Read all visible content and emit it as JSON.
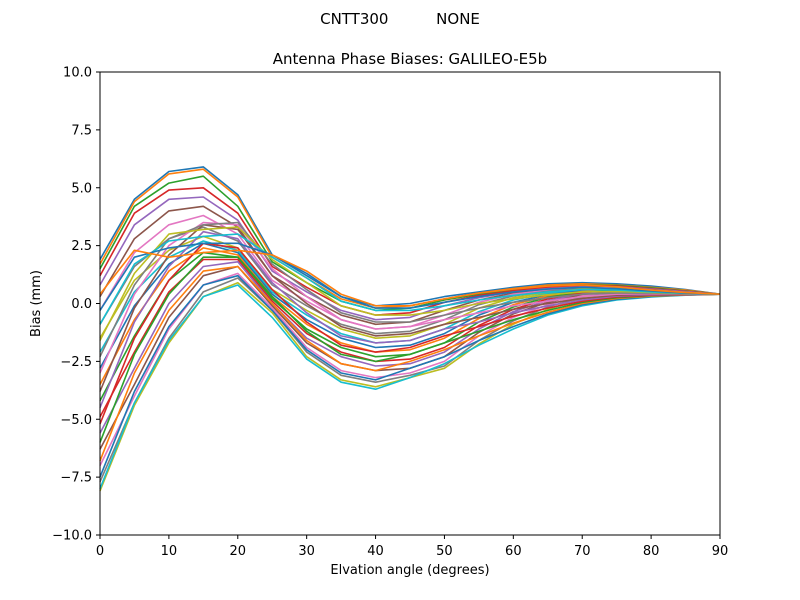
{
  "chart_data": {
    "type": "line",
    "suptitle": "CNTT300          NONE",
    "title": "Antenna Phase Biases: GALILEO-E5b",
    "xlabel": "Elvation angle (degrees)",
    "ylabel": "Bias (mm)",
    "xlim": [
      0,
      90
    ],
    "ylim": [
      -10,
      10
    ],
    "xticks": [
      0,
      10,
      20,
      30,
      40,
      50,
      60,
      70,
      80,
      90
    ],
    "yticks": [
      -10.0,
      -7.5,
      -5.0,
      -2.5,
      0.0,
      2.5,
      5.0,
      7.5,
      10.0
    ],
    "grid": false,
    "legend": "none",
    "x": [
      0,
      5,
      10,
      15,
      20,
      25,
      30,
      35,
      40,
      45,
      50,
      55,
      60,
      65,
      70,
      75,
      80,
      85,
      90
    ],
    "series": [
      {
        "values": [
          1.9,
          4.5,
          5.7,
          5.9,
          4.7,
          2.1,
          1.2,
          0.3,
          -0.1,
          0.0,
          0.3,
          0.5,
          0.7,
          0.85,
          0.9,
          0.85,
          0.75,
          0.6,
          0.4
        ]
      },
      {
        "values": [
          1.7,
          4.4,
          5.6,
          5.8,
          4.6,
          2.0,
          1.1,
          0.2,
          -0.2,
          -0.1,
          0.2,
          0.45,
          0.65,
          0.8,
          0.85,
          0.8,
          0.7,
          0.58,
          0.4
        ]
      },
      {
        "values": [
          1.5,
          4.2,
          5.2,
          5.5,
          4.2,
          1.8,
          0.9,
          0.1,
          -0.3,
          -0.2,
          0.15,
          0.4,
          0.6,
          0.75,
          0.8,
          0.78,
          0.68,
          0.55,
          0.4
        ]
      },
      {
        "values": [
          1.2,
          3.9,
          4.9,
          5.0,
          3.9,
          1.6,
          0.7,
          -0.1,
          -0.5,
          -0.4,
          0.05,
          0.35,
          0.55,
          0.7,
          0.78,
          0.75,
          0.65,
          0.53,
          0.4
        ]
      },
      {
        "values": [
          0.8,
          3.4,
          4.5,
          4.6,
          3.6,
          1.4,
          0.5,
          -0.3,
          -0.7,
          -0.6,
          -0.1,
          0.25,
          0.5,
          0.65,
          0.72,
          0.72,
          0.62,
          0.52,
          0.4
        ]
      },
      {
        "values": [
          0.3,
          2.8,
          4.0,
          4.2,
          3.3,
          1.2,
          0.3,
          -0.5,
          -0.9,
          -0.8,
          -0.3,
          0.15,
          0.45,
          0.6,
          0.7,
          0.7,
          0.6,
          0.5,
          0.4
        ]
      },
      {
        "values": [
          -0.3,
          2.2,
          3.4,
          3.8,
          3.0,
          1.0,
          0.1,
          -0.7,
          -1.1,
          -1.0,
          -0.5,
          0.05,
          0.4,
          0.57,
          0.68,
          0.68,
          0.58,
          0.49,
          0.4
        ]
      },
      {
        "values": [
          -0.9,
          1.6,
          2.8,
          3.3,
          2.7,
          0.8,
          -0.1,
          -0.9,
          -1.3,
          -1.2,
          -0.7,
          -0.05,
          0.33,
          0.53,
          0.65,
          0.66,
          0.57,
          0.48,
          0.4
        ]
      },
      {
        "values": [
          -1.5,
          1.0,
          2.3,
          2.9,
          2.4,
          0.6,
          -0.3,
          -1.1,
          -1.5,
          -1.4,
          -0.9,
          -0.2,
          0.25,
          0.48,
          0.62,
          0.64,
          0.56,
          0.47,
          0.4
        ]
      },
      {
        "values": [
          -2.1,
          0.5,
          2.0,
          2.7,
          2.3,
          0.5,
          -0.5,
          -1.3,
          -1.7,
          -1.6,
          -1.1,
          -0.35,
          0.15,
          0.43,
          0.58,
          0.62,
          0.55,
          0.46,
          0.4
        ]
      },
      {
        "values": [
          -2.8,
          -0.1,
          1.7,
          2.6,
          2.2,
          0.4,
          -0.7,
          -1.5,
          -1.9,
          -1.8,
          -1.3,
          -0.5,
          0.05,
          0.38,
          0.55,
          0.6,
          0.54,
          0.46,
          0.4
        ]
      },
      {
        "values": [
          -3.5,
          -0.7,
          1.4,
          2.4,
          2.1,
          0.3,
          -0.9,
          -1.7,
          -2.1,
          -2.0,
          -1.5,
          -0.65,
          -0.05,
          0.33,
          0.52,
          0.58,
          0.53,
          0.45,
          0.4
        ]
      },
      {
        "values": [
          -4.2,
          -1.4,
          1.0,
          2.2,
          2.0,
          0.2,
          -1.1,
          -1.9,
          -2.3,
          -2.2,
          -1.7,
          -0.8,
          -0.15,
          0.27,
          0.48,
          0.56,
          0.52,
          0.45,
          0.4
        ]
      },
      {
        "values": [
          -4.9,
          -2.1,
          0.5,
          1.9,
          1.9,
          0.1,
          -1.3,
          -2.1,
          -2.5,
          -2.4,
          -1.9,
          -0.95,
          -0.25,
          0.2,
          0.45,
          0.54,
          0.51,
          0.44,
          0.4
        ]
      },
      {
        "values": [
          -5.6,
          -2.8,
          0.0,
          1.6,
          1.8,
          0.0,
          -1.5,
          -2.3,
          -2.7,
          -2.6,
          -2.1,
          -1.1,
          -0.35,
          0.13,
          0.41,
          0.52,
          0.5,
          0.44,
          0.4
        ]
      },
      {
        "values": [
          -6.3,
          -3.5,
          -0.6,
          1.2,
          1.6,
          -0.1,
          -1.7,
          -2.6,
          -2.9,
          -2.8,
          -2.3,
          -1.25,
          -0.45,
          0.05,
          0.37,
          0.5,
          0.49,
          0.43,
          0.4
        ]
      },
      {
        "values": [
          -7.0,
          -4.0,
          -1.1,
          0.8,
          1.3,
          -0.2,
          -1.9,
          -2.9,
          -3.2,
          -3.0,
          -2.5,
          -1.4,
          -0.6,
          -0.05,
          0.33,
          0.47,
          0.48,
          0.43,
          0.4
        ]
      },
      {
        "values": [
          -7.7,
          -4.3,
          -1.5,
          0.5,
          1.1,
          -0.3,
          -2.1,
          -3.1,
          -3.4,
          -3.1,
          -2.7,
          -1.6,
          -0.75,
          -0.15,
          0.28,
          0.44,
          0.47,
          0.42,
          0.4
        ]
      },
      {
        "values": [
          -8.1,
          -4.4,
          -1.7,
          0.3,
          0.9,
          -0.4,
          -2.3,
          -3.3,
          -3.6,
          -3.2,
          -2.8,
          -1.75,
          -0.9,
          -0.25,
          0.22,
          0.41,
          0.46,
          0.42,
          0.4
        ]
      },
      {
        "values": [
          -8.0,
          -4.3,
          -1.6,
          0.3,
          0.8,
          -0.6,
          -2.4,
          -3.4,
          -3.7,
          -3.2,
          -2.6,
          -1.8,
          -1.1,
          -0.5,
          -0.1,
          0.15,
          0.28,
          0.36,
          0.4
        ]
      },
      {
        "values": [
          -7.5,
          -3.8,
          -1.0,
          0.8,
          1.2,
          -0.3,
          -2.0,
          -3.0,
          -3.3,
          -2.8,
          -2.3,
          -1.6,
          -1.0,
          -0.45,
          -0.05,
          0.18,
          0.3,
          0.37,
          0.4
        ]
      },
      {
        "values": [
          -6.8,
          -3.0,
          -0.3,
          1.4,
          1.6,
          0.0,
          -1.6,
          -2.6,
          -2.9,
          -2.5,
          -2.0,
          -1.4,
          -0.85,
          -0.38,
          0.0,
          0.22,
          0.32,
          0.37,
          0.4
        ]
      },
      {
        "values": [
          -6.0,
          -2.2,
          0.4,
          2.0,
          2.0,
          0.3,
          -1.2,
          -2.2,
          -2.5,
          -2.2,
          -1.7,
          -1.2,
          -0.7,
          -0.3,
          0.05,
          0.25,
          0.34,
          0.38,
          0.4
        ]
      },
      {
        "values": [
          -5.2,
          -1.5,
          1.0,
          2.6,
          2.4,
          0.6,
          -0.8,
          -1.8,
          -2.1,
          -1.9,
          -1.4,
          -1.0,
          -0.55,
          -0.2,
          0.1,
          0.28,
          0.36,
          0.38,
          0.4
        ]
      },
      {
        "values": [
          -4.5,
          -0.8,
          1.6,
          3.1,
          2.8,
          0.9,
          -0.4,
          -1.4,
          -1.7,
          -1.6,
          -1.1,
          -0.8,
          -0.4,
          -0.1,
          0.15,
          0.32,
          0.38,
          0.39,
          0.4
        ]
      },
      {
        "values": [
          -3.8,
          -0.2,
          2.1,
          3.4,
          3.2,
          1.2,
          0.0,
          -1.0,
          -1.4,
          -1.3,
          -0.9,
          -0.6,
          -0.25,
          0.0,
          0.22,
          0.36,
          0.4,
          0.4,
          0.4
        ]
      },
      {
        "values": [
          -3.0,
          0.4,
          2.5,
          3.5,
          3.4,
          1.5,
          0.3,
          -0.7,
          -1.1,
          -1.0,
          -0.7,
          -0.4,
          -0.1,
          0.1,
          0.3,
          0.4,
          0.42,
          0.41,
          0.4
        ]
      },
      {
        "values": [
          -2.3,
          0.8,
          2.8,
          3.4,
          3.5,
          1.7,
          0.6,
          -0.4,
          -0.8,
          -0.8,
          -0.5,
          -0.2,
          0.05,
          0.25,
          0.4,
          0.45,
          0.45,
          0.42,
          0.4
        ]
      },
      {
        "values": [
          -1.6,
          1.3,
          3.0,
          3.2,
          3.3,
          1.9,
          0.9,
          -0.1,
          -0.5,
          -0.5,
          -0.3,
          0.0,
          0.2,
          0.38,
          0.5,
          0.52,
          0.48,
          0.43,
          0.4
        ]
      },
      {
        "values": [
          -0.9,
          1.7,
          2.7,
          2.9,
          3.0,
          2.0,
          1.1,
          0.1,
          -0.3,
          -0.3,
          -0.1,
          0.15,
          0.35,
          0.5,
          0.6,
          0.58,
          0.5,
          0.44,
          0.4
        ]
      },
      {
        "values": [
          -0.3,
          2.0,
          2.4,
          2.6,
          2.6,
          2.1,
          1.3,
          0.3,
          -0.2,
          -0.2,
          0.05,
          0.3,
          0.5,
          0.62,
          0.7,
          0.64,
          0.54,
          0.45,
          0.4
        ]
      },
      {
        "values": [
          0.4,
          2.3,
          2.0,
          2.2,
          2.3,
          2.1,
          1.4,
          0.4,
          -0.1,
          -0.1,
          0.2,
          0.45,
          0.62,
          0.75,
          0.8,
          0.72,
          0.58,
          0.47,
          0.4
        ]
      }
    ]
  }
}
